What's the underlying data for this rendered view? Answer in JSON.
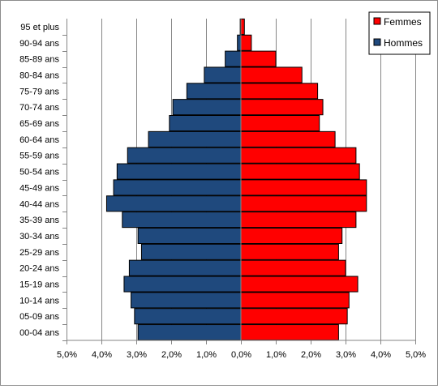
{
  "chart_data": {
    "type": "bar",
    "orientation": "horizontal",
    "layout": "population-pyramid",
    "categories": [
      "00-04 ans",
      "05-09 ans",
      "10-14 ans",
      "15-19 ans",
      "20-24 ans",
      "25-29 ans",
      "30-34 ans",
      "35-39 ans",
      "40-44 ans",
      "45-49 ans",
      "50-54 ans",
      "55-59 ans",
      "60-64 ans",
      "65-69 ans",
      "70-74 ans",
      "75-79 ans",
      "80-84 ans",
      "85-89 ans",
      "90-94 ans",
      "95 et plus"
    ],
    "series": [
      {
        "name": "Hommes",
        "color": "#1f497d",
        "side": "left",
        "values": [
          2.95,
          3.05,
          3.15,
          3.35,
          3.2,
          2.85,
          2.95,
          3.4,
          3.85,
          3.65,
          3.55,
          3.25,
          2.65,
          2.05,
          1.95,
          1.55,
          1.05,
          0.45,
          0.1,
          0.02
        ]
      },
      {
        "name": "Femmes",
        "color": "#ff0000",
        "side": "right",
        "values": [
          2.8,
          3.05,
          3.1,
          3.35,
          3.0,
          2.8,
          2.9,
          3.3,
          3.6,
          3.6,
          3.4,
          3.3,
          2.7,
          2.25,
          2.35,
          2.2,
          1.75,
          1.0,
          0.3,
          0.1
        ]
      }
    ],
    "x_ticks": [
      "5,0%",
      "4,0%",
      "3,0%",
      "2,0%",
      "1,0%",
      "0,0%",
      "1,0%",
      "2,0%",
      "3,0%",
      "4,0%",
      "5,0%"
    ],
    "xlim": [
      -5,
      5
    ],
    "grid": "vertical",
    "legend_position": "top-right",
    "legend": [
      "Femmes",
      "Hommes"
    ],
    "title": "",
    "xlabel": "",
    "ylabel": ""
  }
}
